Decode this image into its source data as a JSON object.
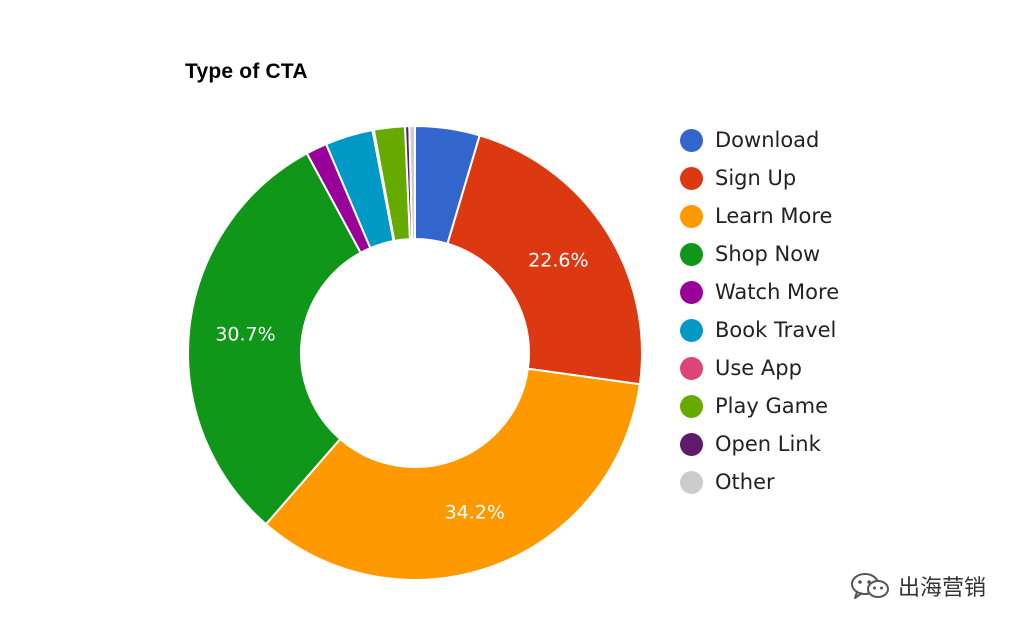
{
  "chart_data": {
    "type": "pie",
    "title": "Type of CTA",
    "categories": [
      "Download",
      "Sign Up",
      "Learn More",
      "Shop Now",
      "Watch More",
      "Book Travel",
      "Use App",
      "Play Game",
      "Open Link",
      "Other"
    ],
    "values": [
      4.6,
      22.6,
      34.2,
      30.7,
      1.5,
      3.4,
      0.1,
      2.2,
      0.3,
      0.4
    ],
    "colors": [
      "#3366cc",
      "#dc3912",
      "#ff9900",
      "#109618",
      "#990099",
      "#0099c6",
      "#dd4477",
      "#66aa00",
      "#5e1a6b",
      "#cccccc"
    ],
    "data_labels": {
      "Sign Up": "22.6%",
      "Learn More": "34.2%",
      "Shop Now": "30.7%"
    },
    "donut": true,
    "legend_position": "right"
  },
  "watermark": {
    "text": "出海营销",
    "icon": "wechat-icon"
  }
}
